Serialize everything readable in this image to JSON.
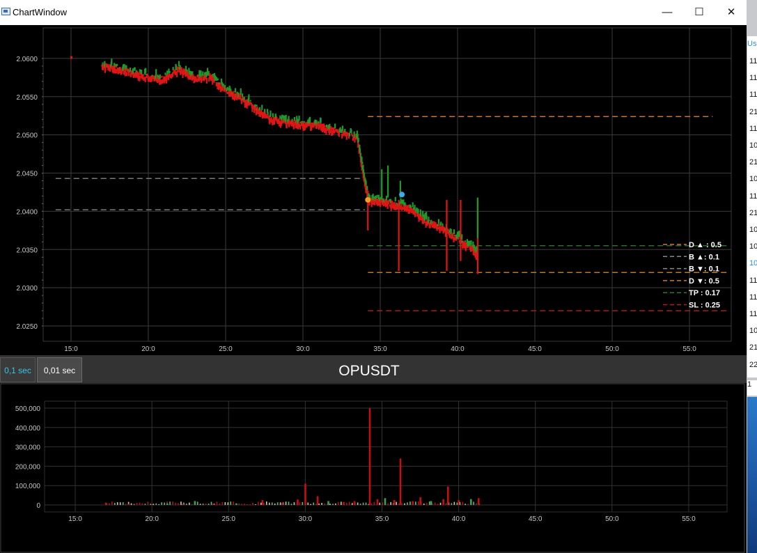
{
  "window": {
    "title": "ChartWindow",
    "minimize": "—",
    "maximize": "☐",
    "close": "✕"
  },
  "price_chart": {
    "chart_data": {
      "type": "scatter",
      "y_ticks": [
        "2.0600",
        "2.0550",
        "2.0500",
        "2.0450",
        "2.0400",
        "2.0350",
        "2.0300",
        "2.0250"
      ],
      "x_ticks": [
        "15:0",
        "20:0",
        "25:0",
        "30:0",
        "35:0",
        "40:0",
        "45:0",
        "50:0",
        "55:0"
      ],
      "ylim": [
        2.023,
        2.064
      ],
      "xlim": [
        13.2,
        57.7
      ],
      "grid": true,
      "price_path": [
        [
          15.0,
          2.0602
        ],
        [
          17.0,
          2.0592
        ],
        [
          18.0,
          2.0588
        ],
        [
          19.0,
          2.0582
        ],
        [
          20.0,
          2.0577
        ],
        [
          21.0,
          2.0574
        ],
        [
          22.0,
          2.0588
        ],
        [
          23.0,
          2.0575
        ],
        [
          24.0,
          2.0578
        ],
        [
          25.0,
          2.056
        ],
        [
          26.0,
          2.055
        ],
        [
          27.0,
          2.0535
        ],
        [
          28.0,
          2.0522
        ],
        [
          29.0,
          2.0518
        ],
        [
          30.0,
          2.0515
        ],
        [
          31.0,
          2.0515
        ],
        [
          32.0,
          2.0507
        ],
        [
          33.5,
          2.0498
        ],
        [
          34.0,
          2.044
        ],
        [
          34.3,
          2.0415
        ],
        [
          35.0,
          2.0415
        ],
        [
          36.0,
          2.041
        ],
        [
          37.0,
          2.0405
        ],
        [
          38.0,
          2.0388
        ],
        [
          39.0,
          2.038
        ],
        [
          40.0,
          2.0365
        ],
        [
          41.0,
          2.0352
        ],
        [
          41.3,
          2.0345
        ]
      ],
      "spikes_down": [
        [
          34.2,
          2.0375
        ],
        [
          36.2,
          2.0322
        ],
        [
          39.3,
          2.0322
        ],
        [
          40.2,
          2.0335
        ],
        [
          41.3,
          2.0318
        ]
      ],
      "spikes_up": [
        [
          35.1,
          2.0455
        ],
        [
          35.5,
          2.046
        ],
        [
          36.3,
          2.044
        ],
        [
          41.3,
          2.0365
        ]
      ],
      "markers": [
        {
          "x": 34.2,
          "y": 2.0415,
          "color": "#f0a020"
        },
        {
          "x": 36.4,
          "y": 2.0422,
          "color": "#3aaeea"
        }
      ],
      "levels": [
        {
          "y": 2.0524,
          "x1": 34.2,
          "x2": 56.5,
          "color": "#c87a40"
        },
        {
          "y": 2.0443,
          "x1": 14.0,
          "x2": 34.0,
          "color": "#7a7a7a"
        },
        {
          "y": 2.0402,
          "x1": 14.0,
          "x2": 34.0,
          "color": "#7a7a7a"
        },
        {
          "y": 2.0355,
          "x1": 34.2,
          "x2": 57.5,
          "color": "#2f6a2f"
        },
        {
          "y": 2.032,
          "x1": 34.2,
          "x2": 57.5,
          "color": "#b87a30"
        },
        {
          "y": 2.027,
          "x1": 34.2,
          "x2": 57.5,
          "color": "#a02020"
        }
      ],
      "legend": [
        {
          "label": "D ▲ : 0.5",
          "color": "#c87a40"
        },
        {
          "label": "B ▲: 0.1",
          "color": "#8a8a8a"
        },
        {
          "label": "B ▼: 0.1",
          "color": "#8a8a8a"
        },
        {
          "label": "D ▼: 0.5",
          "color": "#c87a40"
        },
        {
          "label": "TP : 0.17",
          "color": "#2f7a2f"
        },
        {
          "label": "SL : 0.25",
          "color": "#b02020"
        }
      ]
    }
  },
  "toolbar": {
    "tab_01": "0,1 sec",
    "tab_001": "0,01 sec",
    "symbol": "OPUSDT"
  },
  "volume_chart": {
    "chart_data": {
      "type": "bar",
      "y_ticks": [
        "500,000",
        "400,000",
        "300,000",
        "200,000",
        "100,000",
        "0"
      ],
      "x_ticks": [
        "15:0",
        "20:0",
        "25:0",
        "30:0",
        "35:0",
        "40:0",
        "45:0",
        "50:0",
        "55:0"
      ],
      "ylim": [
        0,
        500000
      ],
      "xlim": [
        13.0,
        57.5
      ],
      "bars": [
        [
          17.0,
          12000,
          "r"
        ],
        [
          18.5,
          6000,
          "r"
        ],
        [
          20.0,
          4000,
          "r"
        ],
        [
          21.0,
          8000,
          "g"
        ],
        [
          22.0,
          6000,
          "r"
        ],
        [
          22.8,
          20000,
          "g"
        ],
        [
          24.0,
          6000,
          "r"
        ],
        [
          25.5,
          8000,
          "g"
        ],
        [
          27.2,
          25000,
          "r"
        ],
        [
          28.5,
          10000,
          "r"
        ],
        [
          29.5,
          28000,
          "r"
        ],
        [
          30.0,
          110000,
          "r"
        ],
        [
          30.8,
          45000,
          "r"
        ],
        [
          31.5,
          20000,
          "g"
        ],
        [
          32.5,
          15000,
          "r"
        ],
        [
          33.2,
          20000,
          "r"
        ],
        [
          34.2,
          500000,
          "r"
        ],
        [
          34.7,
          30000,
          "r"
        ],
        [
          35.2,
          35000,
          "g"
        ],
        [
          35.8,
          25000,
          "r"
        ],
        [
          36.2,
          240000,
          "r"
        ],
        [
          37.0,
          20000,
          "r"
        ],
        [
          37.5,
          40000,
          "r"
        ],
        [
          38.2,
          20000,
          "g"
        ],
        [
          39.0,
          30000,
          "r"
        ],
        [
          39.3,
          95000,
          "r"
        ],
        [
          40.0,
          25000,
          "r"
        ],
        [
          40.8,
          30000,
          "g"
        ],
        [
          41.3,
          35000,
          "r"
        ]
      ]
    }
  },
  "side_list": {
    "header": "Us",
    "rows": [
      "11",
      "11",
      "11",
      "21",
      "11",
      "10",
      "21",
      "10",
      "11",
      "21",
      "10",
      "10",
      "10",
      "11",
      "11",
      "11",
      "10",
      "21",
      "22"
    ],
    "highlight_index": 12,
    "box_text": "1"
  }
}
